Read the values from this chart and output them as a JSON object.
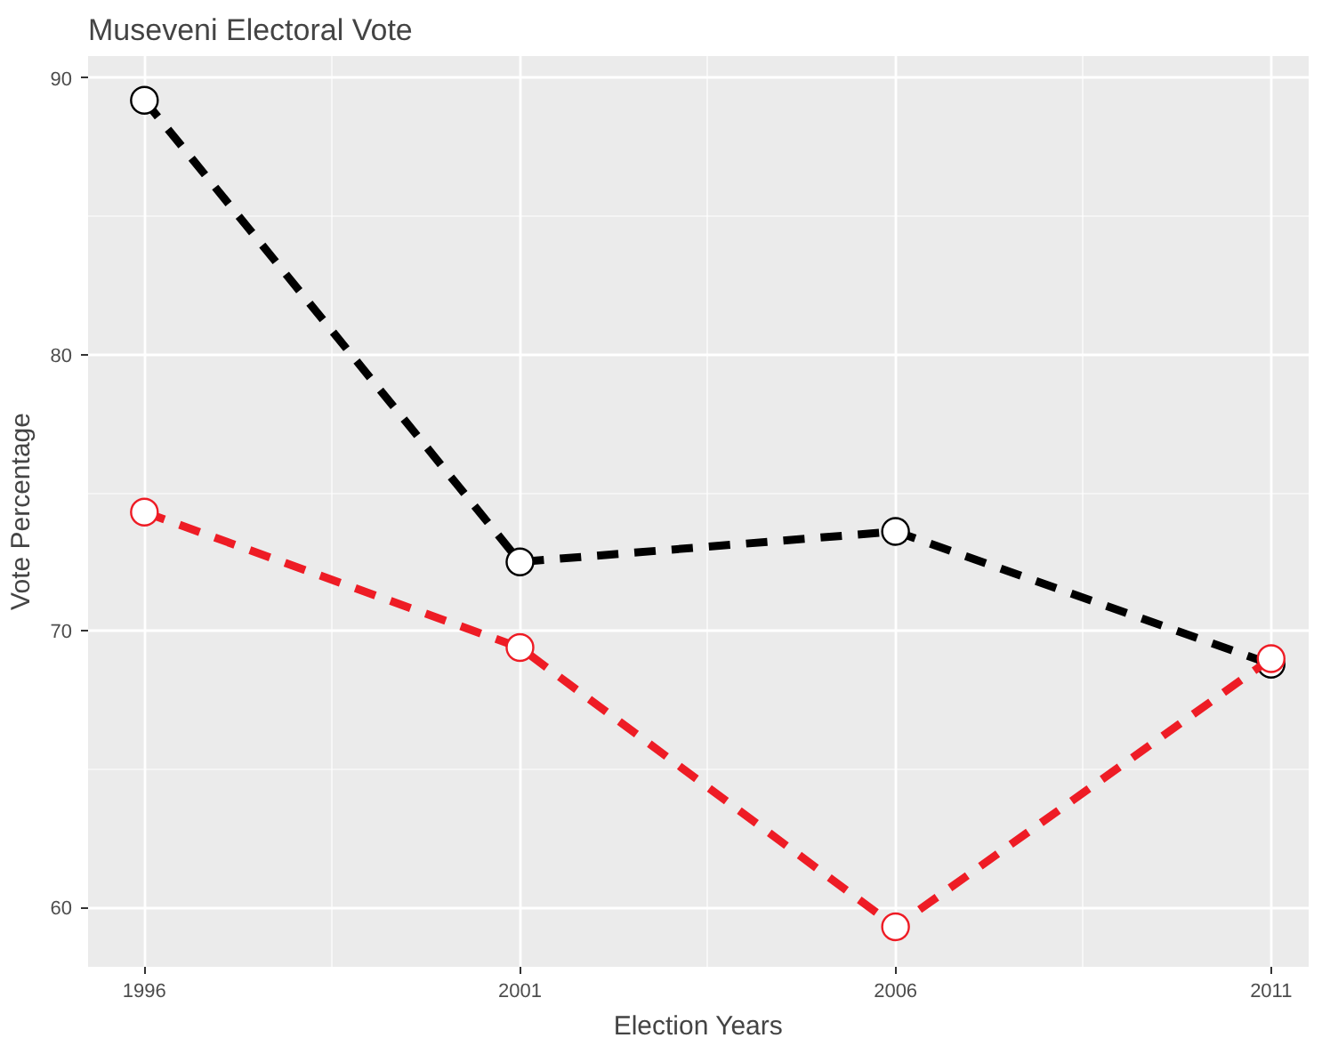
{
  "chart_data": {
    "type": "line",
    "title": "Museveni Electoral Vote",
    "xlabel": "Election Years",
    "ylabel": "Vote Percentage",
    "x": [
      1996,
      2001,
      2006,
      2011
    ],
    "series": [
      {
        "color": "#000000",
        "values": [
          89.2,
          72.5,
          73.6,
          68.8
        ]
      },
      {
        "color": "#ee1c25",
        "values": [
          74.3,
          69.4,
          59.3,
          69.0
        ]
      }
    ],
    "xlim": [
      1995.25,
      2011.5
    ],
    "ylim": [
      57.85,
      90.8
    ],
    "xticks": [
      1996,
      2001,
      2006,
      2011
    ],
    "yticks": [
      60,
      70,
      80,
      90
    ],
    "grid": true,
    "marker": "circle",
    "line_style": "dashed"
  }
}
